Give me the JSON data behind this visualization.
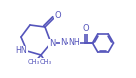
{
  "bg_color": "#ffffff",
  "bond_color": "#5555bb",
  "atom_color": "#5555bb",
  "bond_lw": 1.2,
  "fig_width": 1.36,
  "fig_height": 0.78,
  "dpi": 100,
  "xlim": [
    0,
    13.6
  ],
  "ylim": [
    0,
    7.8
  ]
}
